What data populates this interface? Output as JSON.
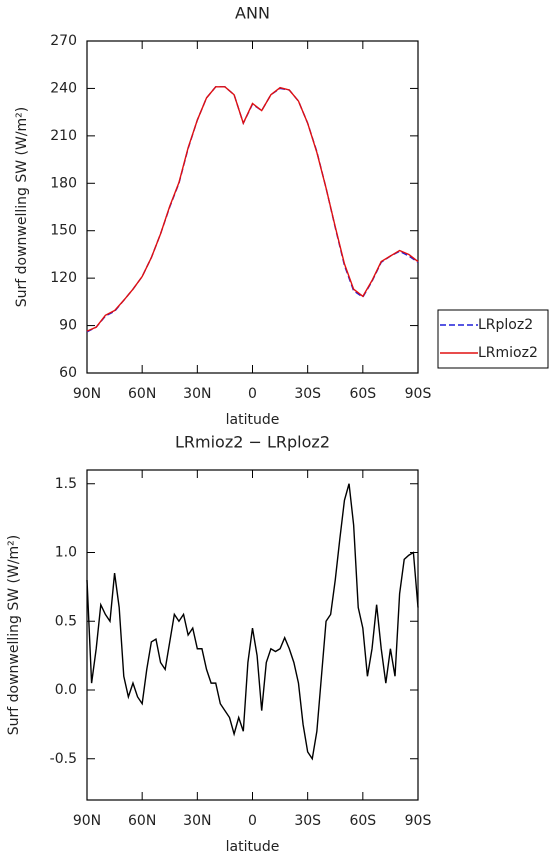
{
  "chart_data": [
    {
      "type": "line",
      "title": "ANN",
      "xlabel": "latitude",
      "ylabel": "Surf downwelling SW (W/m²)",
      "x": [
        90,
        85,
        80,
        75,
        70,
        65,
        60,
        55,
        50,
        45,
        40,
        35,
        30,
        25,
        20,
        15,
        10,
        5,
        0,
        -5,
        -10,
        -15,
        -20,
        -25,
        -30,
        -35,
        -40,
        -45,
        -50,
        -55,
        -60,
        -65,
        -70,
        -75,
        -80,
        -85,
        -90
      ],
      "series": [
        {
          "name": "LRploz2",
          "color": "#1f1fd8",
          "linestyle": "dashed",
          "values": [
            86,
            89,
            96,
            99,
            106,
            113,
            121,
            133,
            148,
            165,
            180,
            202,
            220,
            234,
            241,
            241,
            236,
            218,
            230,
            226,
            236,
            240,
            239,
            232,
            218,
            200,
            177,
            152,
            128,
            112,
            108,
            118,
            130,
            134,
            137,
            134,
            130
          ]
        },
        {
          "name": "LRmioz2",
          "color": "#e01010",
          "linestyle": "solid",
          "values": [
            86.5,
            89,
            96.5,
            99.5,
            106,
            113,
            121,
            133,
            148,
            165.5,
            180.5,
            202.5,
            220,
            234,
            241,
            241,
            236,
            218,
            230.5,
            226,
            236,
            240.5,
            239,
            232,
            218,
            199.5,
            177,
            152.5,
            129,
            113,
            108.5,
            118.5,
            130.5,
            134,
            137.5,
            135,
            130.5
          ]
        }
      ],
      "xlim": [
        90,
        -90
      ],
      "xticks": [
        {
          "value": 90,
          "label": "90N"
        },
        {
          "value": 60,
          "label": "60N"
        },
        {
          "value": 30,
          "label": "30N"
        },
        0,
        {
          "value": -30,
          "label": "30S"
        },
        {
          "value": -60,
          "label": "60S"
        },
        {
          "value": -90,
          "label": "90S"
        }
      ],
      "ylim": [
        60,
        270
      ],
      "yticks": [
        60,
        90,
        120,
        150,
        180,
        210,
        240,
        270
      ],
      "legend": "right"
    },
    {
      "type": "line",
      "title": "LRmioz2 − LRploz2",
      "xlabel": "latitude",
      "ylabel": "Surf downwelling SW (W/m²)",
      "x": [
        90,
        87.5,
        85,
        82.5,
        80,
        77.5,
        75,
        72.5,
        70,
        67.5,
        65,
        62.5,
        60,
        57.5,
        55,
        52.5,
        50,
        47.5,
        45,
        42.5,
        40,
        37.5,
        35,
        32.5,
        30,
        27.5,
        25,
        22.5,
        20,
        17.5,
        15,
        12.5,
        10,
        7.5,
        5,
        2.5,
        0,
        -2.5,
        -5,
        -7.5,
        -10,
        -12.5,
        -15,
        -17.5,
        -20,
        -22.5,
        -25,
        -27.5,
        -30,
        -32.5,
        -35,
        -37.5,
        -40,
        -42.5,
        -45,
        -47.5,
        -50,
        -52.5,
        -55,
        -57.5,
        -60,
        -62.5,
        -65,
        -67.5,
        -70,
        -72.5,
        -75,
        -77.5,
        -80,
        -82.5,
        -85,
        -87.5,
        -90
      ],
      "values": [
        0.8,
        0.05,
        0.3,
        0.62,
        0.55,
        0.5,
        0.85,
        0.6,
        0.1,
        -0.05,
        0.05,
        -0.05,
        -0.1,
        0.15,
        0.35,
        0.37,
        0.2,
        0.15,
        0.35,
        0.55,
        0.5,
        0.55,
        0.4,
        0.45,
        0.3,
        0.3,
        0.15,
        0.05,
        0.05,
        -0.1,
        -0.15,
        -0.2,
        -0.32,
        -0.2,
        -0.3,
        0.2,
        0.45,
        0.25,
        -0.15,
        0.2,
        0.3,
        0.28,
        0.3,
        0.38,
        0.3,
        0.2,
        0.05,
        -0.25,
        -0.45,
        -0.5,
        -0.3,
        0.1,
        0.5,
        0.55,
        0.8,
        1.1,
        1.38,
        1.5,
        1.2,
        0.6,
        0.45,
        0.1,
        0.3,
        0.62,
        0.3,
        0.05,
        0.3,
        0.1,
        0.7,
        0.95,
        0.98,
        1.0,
        0.6
      ],
      "color": "#000000",
      "xlim": [
        90,
        -90
      ],
      "xticks": [
        {
          "value": 90,
          "label": "90N"
        },
        {
          "value": 60,
          "label": "60N"
        },
        {
          "value": 30,
          "label": "30N"
        },
        0,
        {
          "value": -30,
          "label": "30S"
        },
        {
          "value": -60,
          "label": "60S"
        },
        {
          "value": -90,
          "label": "90S"
        }
      ],
      "ylim": [
        -0.8,
        1.6
      ],
      "yticks": [
        -0.5,
        {
          "value": 0,
          "label": "0.0"
        },
        0.5,
        {
          "value": 1,
          "label": "1.0"
        },
        1.5
      ]
    }
  ]
}
